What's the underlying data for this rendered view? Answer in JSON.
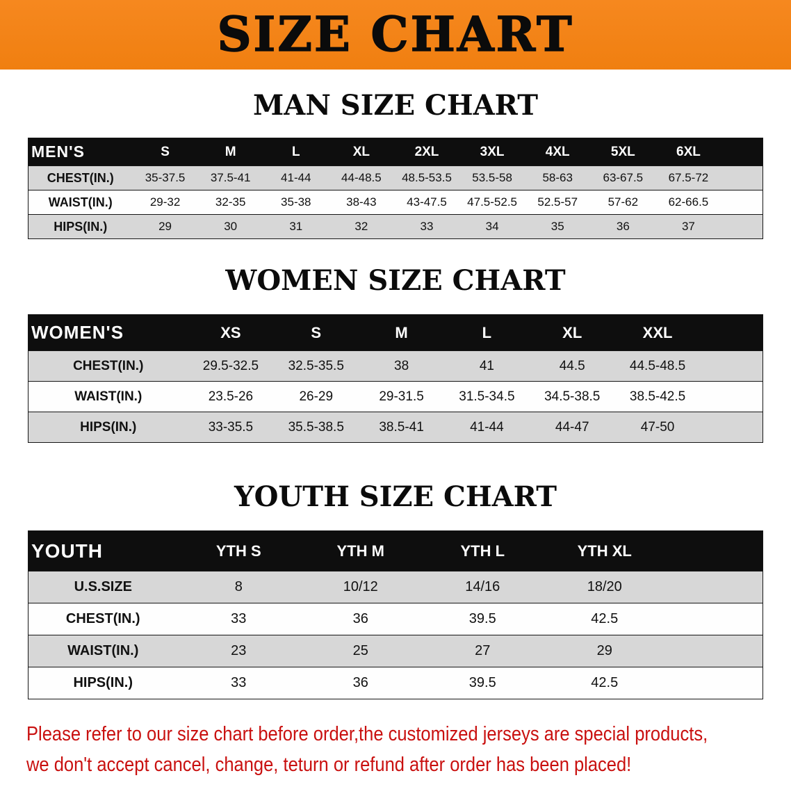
{
  "banner": {
    "title": "SIZE CHART"
  },
  "sections": [
    {
      "heading": "MAN SIZE CHART",
      "table": {
        "corner": "MEN'S",
        "columns": [
          "S",
          "M",
          "L",
          "XL",
          "2XL",
          "3XL",
          "4XL",
          "5XL",
          "6XL"
        ],
        "rows": [
          {
            "label": "CHEST(IN.)",
            "values": [
              "35-37.5",
              "37.5-41",
              "41-44",
              "44-48.5",
              "48.5-53.5",
              "53.5-58",
              "58-63",
              "63-67.5",
              "67.5-72"
            ]
          },
          {
            "label": "WAIST(IN.)",
            "values": [
              "29-32",
              "32-35",
              "35-38",
              "38-43",
              "43-47.5",
              "47.5-52.5",
              "52.5-57",
              "57-62",
              "62-66.5"
            ]
          },
          {
            "label": "HIPS(IN.)",
            "values": [
              "29",
              "30",
              "31",
              "32",
              "33",
              "34",
              "35",
              "36",
              "37"
            ]
          }
        ]
      }
    },
    {
      "heading": "WOMEN SIZE CHART",
      "table": {
        "corner": "WOMEN'S",
        "columns": [
          "XS",
          "S",
          "M",
          "L",
          "XL",
          "XXL"
        ],
        "rows": [
          {
            "label": "CHEST(IN.)",
            "values": [
              "29.5-32.5",
              "32.5-35.5",
              "38",
              "41",
              "44.5",
              "44.5-48.5"
            ]
          },
          {
            "label": "WAIST(IN.)",
            "values": [
              "23.5-26",
              "26-29",
              "29-31.5",
              "31.5-34.5",
              "34.5-38.5",
              "38.5-42.5"
            ]
          },
          {
            "label": "HIPS(IN.)",
            "values": [
              "33-35.5",
              "35.5-38.5",
              "38.5-41",
              "41-44",
              "44-47",
              "47-50"
            ]
          }
        ]
      }
    },
    {
      "heading": "YOUTH SIZE CHART",
      "table": {
        "corner": "YOUTH",
        "columns": [
          "YTH S",
          "YTH M",
          "YTH L",
          "YTH XL"
        ],
        "rows": [
          {
            "label": "U.S.SIZE",
            "values": [
              "8",
              "10/12",
              "14/16",
              "18/20"
            ]
          },
          {
            "label": "CHEST(IN.)",
            "values": [
              "33",
              "36",
              "39.5",
              "42.5"
            ]
          },
          {
            "label": "WAIST(IN.)",
            "values": [
              "23",
              "25",
              "27",
              "29"
            ]
          },
          {
            "label": "HIPS(IN.)",
            "values": [
              "33",
              "36",
              "39.5",
              "42.5"
            ]
          }
        ]
      }
    }
  ],
  "disclaimer": {
    "line1": "Please refer to our size chart before order,the customized jerseys are special products,",
    "line2": "we don't accept cancel, change, teturn or refund after order has been placed!"
  },
  "colors": {
    "banner_orange": "#F6881F",
    "header_black": "#0E0E0E",
    "row_gray": "#D7D7D7",
    "disclaimer_red": "#C9100F"
  }
}
